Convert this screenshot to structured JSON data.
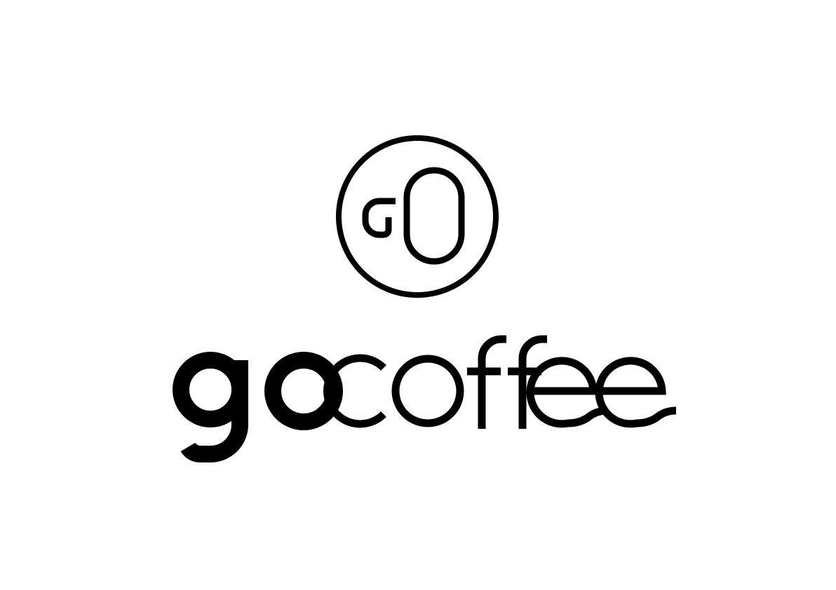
{
  "logo": {
    "brand_name": "gocoffee",
    "part_bold": "go",
    "part_light": "coffee",
    "emblem_icon": "go-monogram-icon",
    "color": "#000000",
    "background": "#ffffff"
  }
}
